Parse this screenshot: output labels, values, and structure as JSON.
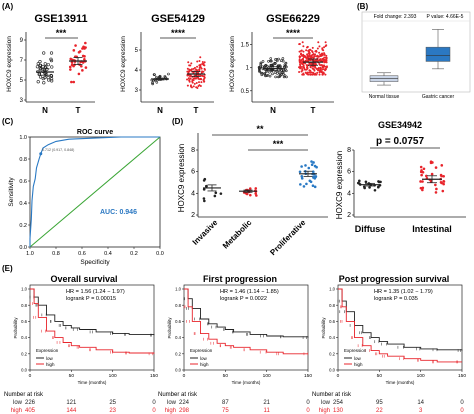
{
  "panel_labels": {
    "A": "(A)",
    "B": "(B)",
    "C": "(C)",
    "D": "(D)",
    "E": "(E)"
  },
  "colors": {
    "dark": "#222222",
    "red": "#e8242b",
    "blue": "#2979c4",
    "green": "#3aa535",
    "accent_blue": "#2b78c2"
  },
  "chart_data": [
    {
      "id": "A1",
      "type": "scatter",
      "title": "GSE13911",
      "ylabel": "HOXC9 expression",
      "categories": [
        "N",
        "T"
      ],
      "ylim": [
        3,
        9
      ],
      "yticks": [
        3,
        5,
        7,
        9
      ],
      "significance": "***",
      "groups": [
        {
          "name": "N",
          "mean": 5.8,
          "sd": 0.8,
          "n": 38,
          "spread": [
            3.8,
            7.7
          ]
        },
        {
          "name": "T",
          "mean": 6.9,
          "sd": 0.9,
          "n": 38,
          "spread": [
            4.8,
            8.7
          ]
        }
      ]
    },
    {
      "id": "A2",
      "type": "scatter",
      "title": "GSE54129",
      "ylabel": "HOXC9 expression",
      "categories": [
        "N",
        "T"
      ],
      "ylim": [
        2.5,
        5.5
      ],
      "yticks": [
        3,
        4,
        5
      ],
      "significance": "****",
      "groups": [
        {
          "name": "N",
          "mean": 3.55,
          "sd": 0.12,
          "n": 21,
          "spread": [
            3.3,
            3.8
          ]
        },
        {
          "name": "T",
          "mean": 3.8,
          "sd": 0.3,
          "n": 111,
          "spread": [
            3.1,
            4.9
          ]
        }
      ]
    },
    {
      "id": "A3",
      "type": "scatter",
      "title": "GSE66229",
      "ylabel": "HOXC9 expression",
      "categories": [
        "N",
        "T"
      ],
      "ylim": [
        0.3,
        1.6
      ],
      "yticks": [
        0.5,
        1.0,
        1.5
      ],
      "significance": "****",
      "groups": [
        {
          "name": "N",
          "mean": 0.98,
          "sd": 0.1,
          "n": 100,
          "spread": [
            0.8,
            1.2
          ]
        },
        {
          "name": "T",
          "mean": 1.12,
          "sd": 0.17,
          "n": 300,
          "spread": [
            0.85,
            1.55
          ]
        }
      ]
    },
    {
      "id": "B",
      "type": "box",
      "fold_change": "Fold change: 2.393",
      "p_value": "P value: 4.66E-5",
      "categories": [
        "Normal tissue",
        "Gastric cancer"
      ],
      "boxes": [
        {
          "name": "Normal tissue",
          "whisker_low": -0.35,
          "q1": -0.28,
          "median": -0.22,
          "q3": -0.16,
          "whisker_high": -0.1
        },
        {
          "name": "Gastric cancer",
          "whisker_low": -0.02,
          "q1": 0.13,
          "median": 0.25,
          "q3": 0.42,
          "whisker_high": 0.78
        }
      ],
      "ylim": [
        -0.45,
        0.85
      ]
    },
    {
      "id": "C",
      "type": "line",
      "title": "ROC curve",
      "xlabel": "Specificity",
      "ylabel": "Sensitivity",
      "auc_label": "AUC: 0.946",
      "point_label": "0.712 (0.917, 0.848)",
      "xticks": [
        "1.0",
        "0.8",
        "0.6",
        "0.4",
        "0.2",
        "0.0"
      ],
      "yticks": [
        "0.0",
        "0.2",
        "0.4",
        "0.6",
        "0.8",
        "1.0"
      ],
      "roc_points": [
        [
          1.0,
          0.0
        ],
        [
          1.0,
          0.08
        ],
        [
          0.99,
          0.25
        ],
        [
          0.985,
          0.42
        ],
        [
          0.975,
          0.55
        ],
        [
          0.96,
          0.62
        ],
        [
          0.95,
          0.72
        ],
        [
          0.93,
          0.8
        ],
        [
          0.917,
          0.848
        ],
        [
          0.9,
          0.9
        ],
        [
          0.86,
          0.93
        ],
        [
          0.8,
          0.96
        ],
        [
          0.7,
          0.98
        ],
        [
          0.5,
          0.99
        ],
        [
          0.3,
          1.0
        ],
        [
          0.0,
          1.0
        ]
      ]
    },
    {
      "id": "D1",
      "type": "scatter",
      "ylabel": "HOXC9 expression",
      "categories": [
        "Invasive",
        "Metabolic",
        "Proliferative"
      ],
      "ylim": [
        2,
        8
      ],
      "yticks": [
        2,
        4,
        6,
        8
      ],
      "significance": [
        {
          "from": 0,
          "to": 2,
          "label": "**"
        },
        {
          "from": 1,
          "to": 2,
          "label": "***"
        }
      ],
      "groups": [
        {
          "name": "Invasive",
          "mean": 4.5,
          "sd": 0.7,
          "n": 10,
          "spread": [
            3.3,
            6.5
          ],
          "color": "#222222"
        },
        {
          "name": "Metabolic",
          "mean": 4.2,
          "sd": 0.25,
          "n": 14,
          "spread": [
            3.8,
            4.8
          ],
          "color": "#e8242b"
        },
        {
          "name": "Proliferative",
          "mean": 5.8,
          "sd": 0.6,
          "n": 28,
          "spread": [
            4.6,
            7.0
          ],
          "color": "#2979c4"
        }
      ]
    },
    {
      "id": "D2",
      "type": "scatter",
      "title": "GSE34942",
      "p_label": "p = 0.0757",
      "ylabel": "HOXC9 expression",
      "categories": [
        "Diffuse",
        "Intestinal"
      ],
      "ylim": [
        2,
        8
      ],
      "yticks": [
        2,
        4,
        6,
        8
      ],
      "groups": [
        {
          "name": "Diffuse",
          "mean": 4.8,
          "sd": 0.3,
          "n": 18,
          "spread": [
            4.0,
            5.4
          ],
          "color": "#222222"
        },
        {
          "name": "Intestinal",
          "mean": 5.3,
          "sd": 0.8,
          "n": 35,
          "spread": [
            3.9,
            7.3
          ],
          "color": "#e8242b"
        }
      ]
    },
    {
      "id": "E1",
      "type": "line",
      "title": "Overall survival",
      "hr": "HR = 1.56 (1.24 − 1.97)",
      "logrank": "logrank P = 0.00015",
      "xlabel": "Time (months)",
      "ylabel": "Probability",
      "xlim": [
        0,
        150
      ],
      "xticks": [
        "0",
        "50",
        "100",
        "150"
      ],
      "yticks": [
        "0.0",
        "0.2",
        "0.4",
        "0.6",
        "0.8",
        "1.0"
      ],
      "legend_title": "Expression",
      "series": [
        {
          "name": "low",
          "color": "#222222",
          "points": [
            [
              0,
              1
            ],
            [
              5,
              0.9
            ],
            [
              10,
              0.8
            ],
            [
              20,
              0.68
            ],
            [
              30,
              0.6
            ],
            [
              40,
              0.55
            ],
            [
              50,
              0.52
            ],
            [
              60,
              0.5
            ],
            [
              80,
              0.47
            ],
            [
              100,
              0.45
            ],
            [
              120,
              0.44
            ],
            [
              150,
              0.43
            ]
          ]
        },
        {
          "name": "high",
          "color": "#e8242b",
          "points": [
            [
              0,
              1
            ],
            [
              5,
              0.82
            ],
            [
              10,
              0.65
            ],
            [
              20,
              0.48
            ],
            [
              30,
              0.4
            ],
            [
              40,
              0.34
            ],
            [
              50,
              0.3
            ],
            [
              60,
              0.28
            ],
            [
              80,
              0.25
            ],
            [
              100,
              0.22
            ],
            [
              120,
              0.21
            ],
            [
              150,
              0.2
            ]
          ]
        }
      ],
      "at_risk_label": "Number at risk",
      "at_risk": [
        {
          "name": "low",
          "values": [
            "226",
            "121",
            "25",
            "0"
          ]
        },
        {
          "name": "high",
          "values": [
            "405",
            "144",
            "23",
            "0"
          ]
        }
      ]
    },
    {
      "id": "E2",
      "type": "line",
      "title": "First progression",
      "hr": "HR = 1.46 (1.14 − 1.85)",
      "logrank": "logrank P = 0.0022",
      "xlabel": "Time (months)",
      "ylabel": "Probability",
      "xlim": [
        0,
        150
      ],
      "xticks": [
        "0",
        "50",
        "100",
        "150"
      ],
      "yticks": [
        "0.0",
        "0.2",
        "0.4",
        "0.6",
        "0.8",
        "1.0"
      ],
      "legend_title": "Expression",
      "series": [
        {
          "name": "low",
          "color": "#222222",
          "points": [
            [
              0,
              1
            ],
            [
              5,
              0.88
            ],
            [
              10,
              0.76
            ],
            [
              20,
              0.63
            ],
            [
              30,
              0.57
            ],
            [
              40,
              0.53
            ],
            [
              50,
              0.5
            ],
            [
              60,
              0.47
            ],
            [
              80,
              0.44
            ],
            [
              100,
              0.42
            ],
            [
              120,
              0.41
            ],
            [
              150,
              0.4
            ]
          ]
        },
        {
          "name": "high",
          "color": "#e8242b",
          "points": [
            [
              0,
              1
            ],
            [
              5,
              0.78
            ],
            [
              10,
              0.6
            ],
            [
              20,
              0.45
            ],
            [
              30,
              0.38
            ],
            [
              40,
              0.33
            ],
            [
              50,
              0.3
            ],
            [
              60,
              0.28
            ],
            [
              80,
              0.25
            ],
            [
              100,
              0.22
            ],
            [
              120,
              0.2
            ],
            [
              150,
              0.2
            ]
          ]
        }
      ],
      "at_risk_label": "Number at risk",
      "at_risk": [
        {
          "name": "low",
          "values": [
            "224",
            "87",
            "21",
            "0"
          ]
        },
        {
          "name": "high",
          "values": [
            "298",
            "75",
            "11",
            "0"
          ]
        }
      ]
    },
    {
      "id": "E3",
      "type": "line",
      "title": "Post progression survival",
      "hr": "HR = 1.35 (1.02 − 1.79)",
      "logrank": "logrank P = 0.035",
      "xlabel": "Time (months)",
      "ylabel": "Probability",
      "xlim": [
        0,
        150
      ],
      "xticks": [
        "0",
        "50",
        "100",
        "150"
      ],
      "yticks": [
        "0.0",
        "0.2",
        "0.4",
        "0.6",
        "0.8",
        "1.0"
      ],
      "legend_title": "Expression",
      "series": [
        {
          "name": "low",
          "color": "#222222",
          "points": [
            [
              0,
              1
            ],
            [
              5,
              0.85
            ],
            [
              10,
              0.72
            ],
            [
              20,
              0.55
            ],
            [
              30,
              0.46
            ],
            [
              40,
              0.4
            ],
            [
              50,
              0.35
            ],
            [
              60,
              0.32
            ],
            [
              80,
              0.28
            ],
            [
              100,
              0.26
            ],
            [
              120,
              0.25
            ],
            [
              150,
              0.24
            ]
          ]
        },
        {
          "name": "high",
          "color": "#e8242b",
          "points": [
            [
              0,
              1
            ],
            [
              5,
              0.78
            ],
            [
              10,
              0.6
            ],
            [
              20,
              0.4
            ],
            [
              30,
              0.3
            ],
            [
              40,
              0.24
            ],
            [
              50,
              0.2
            ],
            [
              60,
              0.17
            ],
            [
              80,
              0.14
            ],
            [
              100,
              0.12
            ],
            [
              120,
              0.1
            ],
            [
              150,
              0.1
            ]
          ]
        }
      ],
      "at_risk_label": "Number at risk",
      "at_risk": [
        {
          "name": "low",
          "values": [
            "254",
            "95",
            "14",
            "0"
          ]
        },
        {
          "name": "high",
          "values": [
            "130",
            "22",
            "3",
            "0"
          ]
        }
      ]
    }
  ]
}
